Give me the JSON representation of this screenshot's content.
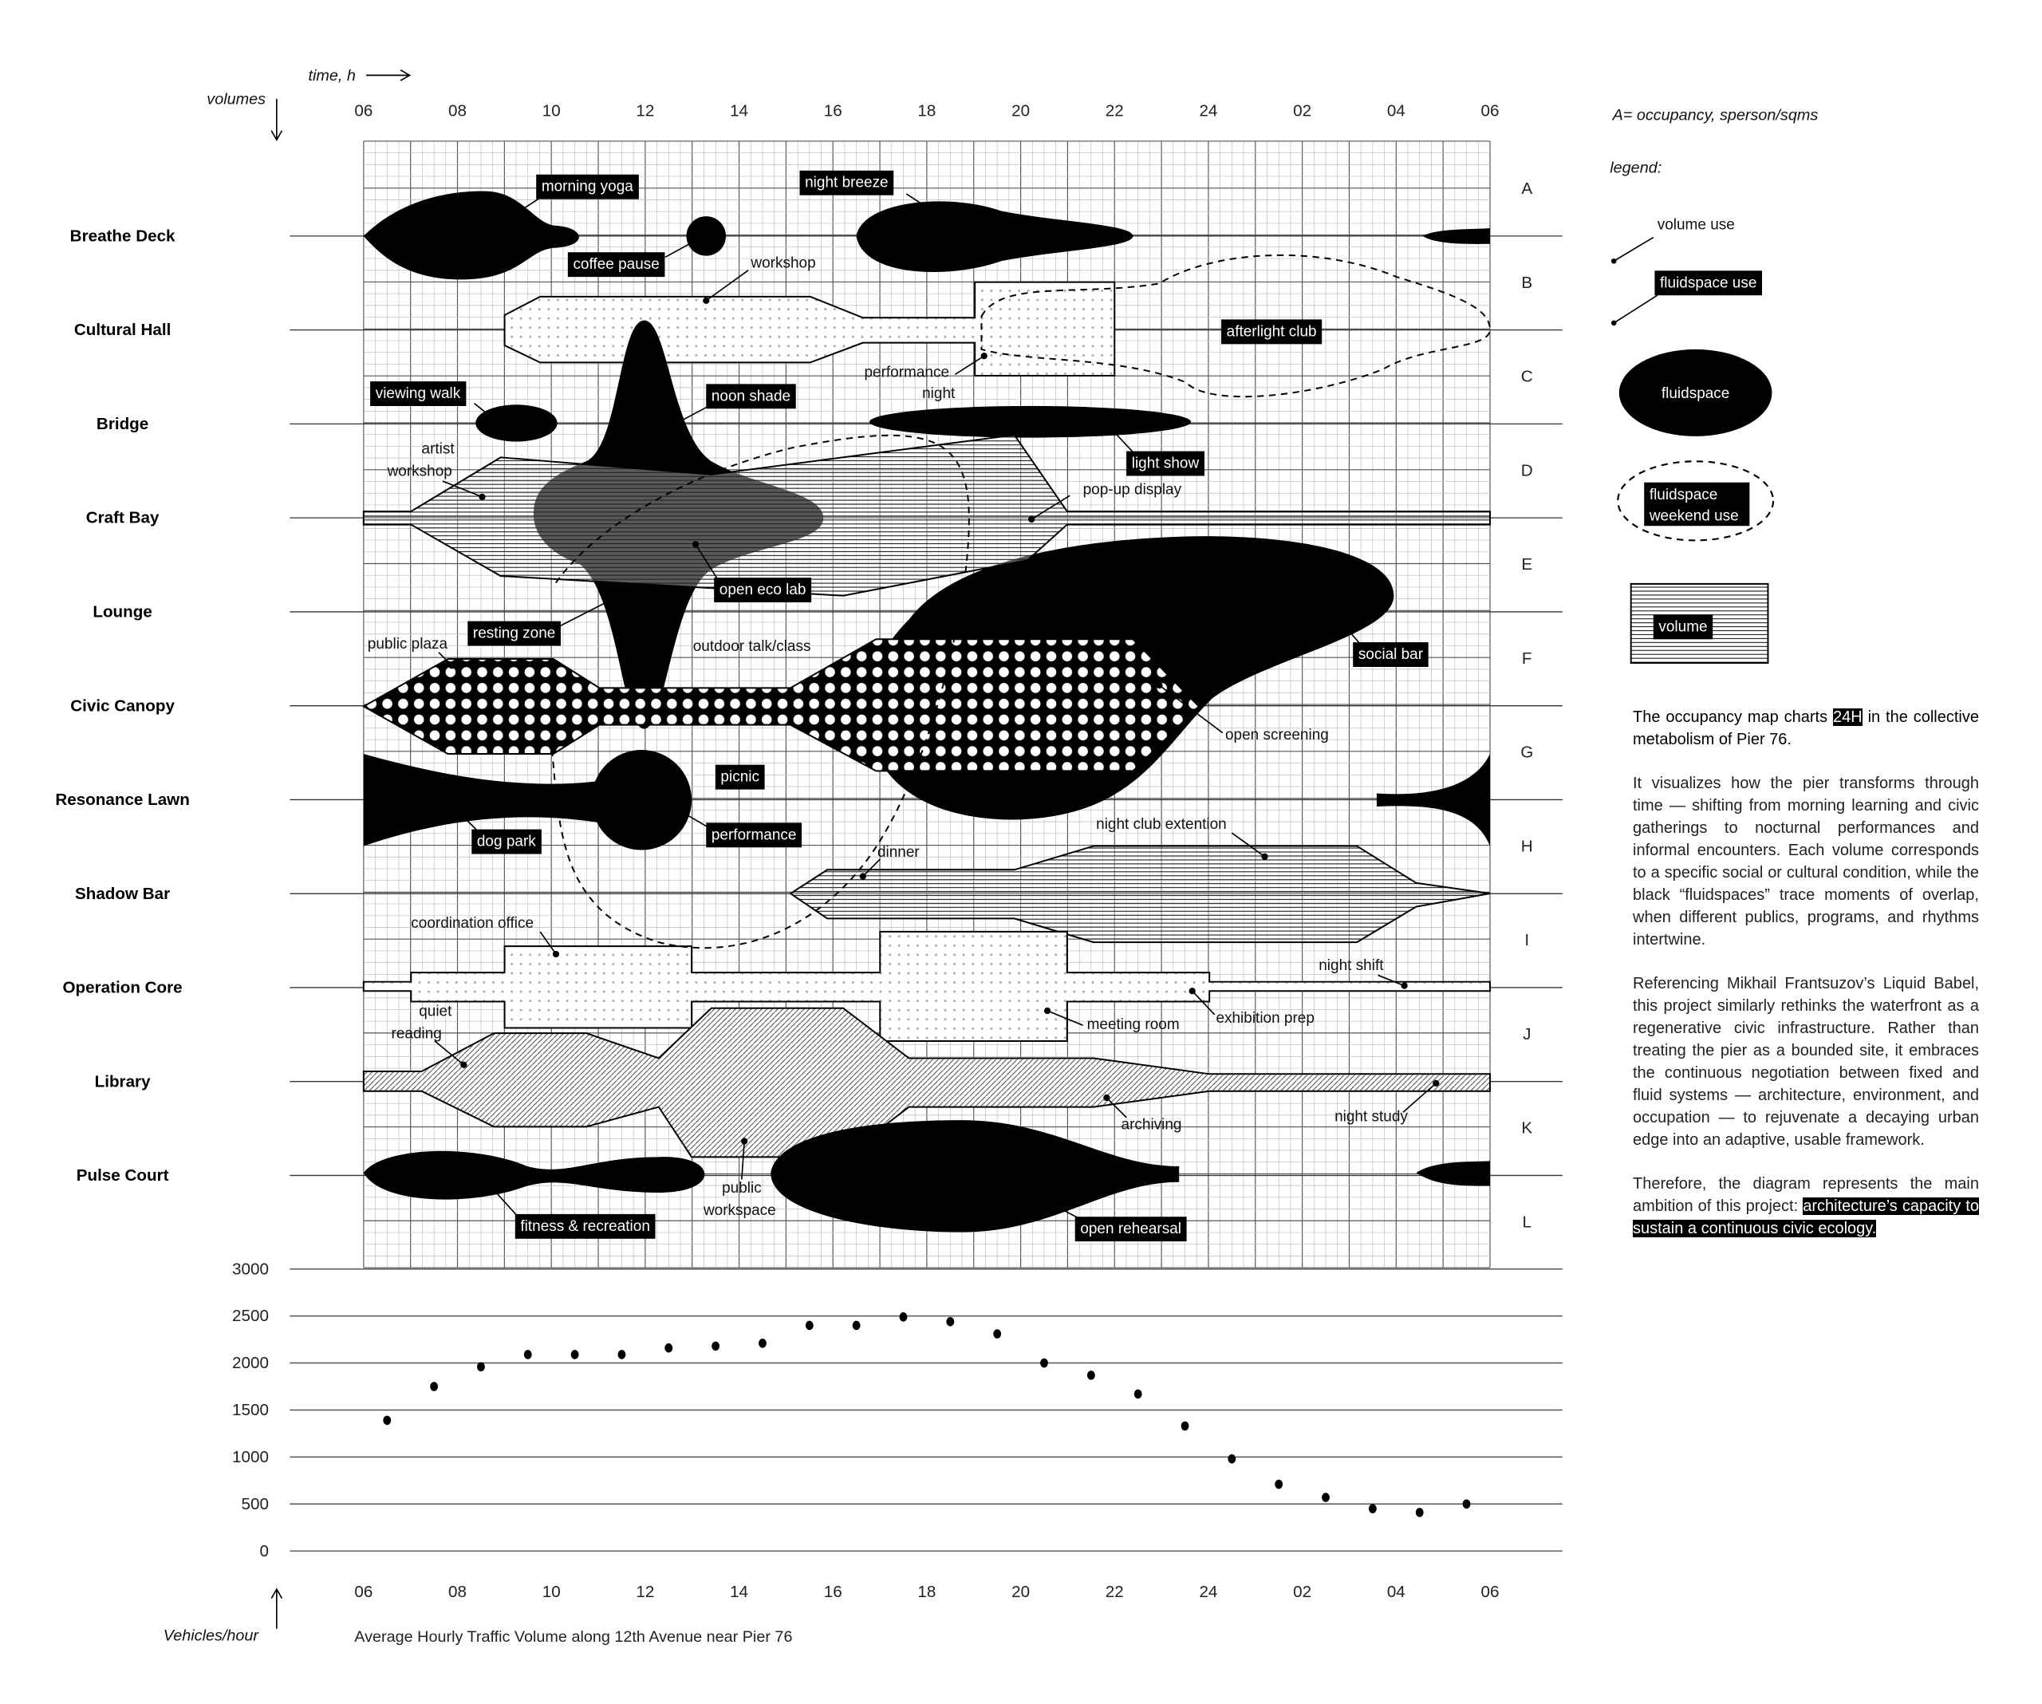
{
  "axes": {
    "time_label": "time, h",
    "volumes_label": "volumes",
    "hours": [
      "06",
      "08",
      "10",
      "12",
      "14",
      "16",
      "18",
      "20",
      "22",
      "24",
      "02",
      "04",
      "06"
    ],
    "row_letters": [
      "A",
      "B",
      "C",
      "D",
      "E",
      "F",
      "G",
      "H",
      "I",
      "J",
      "K",
      "L"
    ]
  },
  "volumes": [
    "Breathe Deck",
    "Cultural Hall",
    "Bridge",
    "Craft Bay",
    "Lounge",
    "Civic Canopy",
    "Resonance Lawn",
    "Shadow Bar",
    "Operation Core",
    "Library",
    "Pulse Court"
  ],
  "labels": {
    "morning_yoga": "morning yoga",
    "coffee_pause": "coffee pause",
    "night_breeze": "night breeze",
    "workshop": "workshop",
    "afterlight_club": "afterlight club",
    "performance_night": [
      "performance",
      "night"
    ],
    "viewing_walk": "viewing walk",
    "noon_shade": "noon shade",
    "light_show": "light show",
    "artist_workshop": [
      "artist",
      "workshop"
    ],
    "popup_display": "pop-up display",
    "open_eco_lab": "open eco lab",
    "resting_zone": "resting zone",
    "public_plaza": "public plaza",
    "outdoor_talk": "outdoor talk/class",
    "social_bar": "social bar",
    "open_screening": "open screening",
    "picnic": "picnic",
    "dog_park": "dog park",
    "performance": "performance",
    "night_club_extention": "night club extention",
    "dinner": "dinner",
    "coordination_office": "coordination office",
    "night_shift": "night shift",
    "quiet_reading": [
      "quiet",
      "reading"
    ],
    "meeting_room": "meeting room",
    "exhibition_prep": "exhibition prep",
    "archiving": "archiving",
    "night_study": "night study",
    "public_workspace": [
      "public",
      "workspace"
    ],
    "fitness_recreation": "fitness & recreation",
    "open_rehearsal": "open rehearsal"
  },
  "legend": {
    "occupancy_note": "A= occupancy, sperson/sqms",
    "title": "legend:",
    "volume_use": "volume use",
    "fluidspace_use": "fluidspace use",
    "fluidspace": "fluidspace",
    "fluidspace_weekend": [
      "fluidspace",
      "weekend use"
    ],
    "volume": "volume"
  },
  "description": {
    "p1_before": "The occupancy map charts ",
    "p1_highlight": "24H",
    "p1_after": " in the collective metabolism of Pier 76.",
    "p2": "It visualizes how the pier transforms through time — shifting from morning learning and civic gatherings to nocturnal performances and informal encounters. Each volume corresponds to a specific social or cultural condition, while the black “fluidspaces” trace moments of overlap, when different publics, programs, and rhythms intertwine.",
    "p3": "Referencing Mikhail Frantsuzov’s Liquid Babel, this project similarly rethinks the waterfront as a regenerative civic infrastructure. Rather than treating the pier as a bounded site, it embraces the continuous negotiation between fixed and fluid systems — architecture, environment, and occupation — to rejuvenate a decaying urban edge into an adaptive, usable framework.",
    "p4": "Therefore, the diagram represents the main ambition of this project:",
    "p4_highlight": "architecture’s capacity to sustain a continuous civic ecology."
  },
  "chart_data": {
    "type": "scatter",
    "title": "Average Hourly Traffic Volume along 12th Avenue near Pier 76",
    "ylabel": "Vehicles/hour",
    "xlabel": "",
    "x_tick_labels": [
      "06",
      "08",
      "10",
      "12",
      "14",
      "16",
      "18",
      "20",
      "22",
      "24",
      "02",
      "04",
      "06"
    ],
    "y_ticks": [
      3000,
      2500,
      2000,
      1500,
      1000,
      500,
      0
    ],
    "ylim": [
      0,
      3000
    ],
    "grid": "horizontal",
    "x": [
      "06:30",
      "07:30",
      "08:30",
      "09:30",
      "10:30",
      "11:30",
      "12:30",
      "13:30",
      "14:30",
      "15:30",
      "16:30",
      "17:30",
      "18:30",
      "19:30",
      "20:30",
      "21:30",
      "22:30",
      "23:30",
      "00:30",
      "01:30",
      "02:30",
      "03:30",
      "04:30",
      "05:30"
    ],
    "values": [
      1390,
      1750,
      1960,
      2090,
      2090,
      2090,
      2160,
      2180,
      2210,
      2400,
      2400,
      2490,
      2440,
      2310,
      2000,
      1870,
      1670,
      1330,
      980,
      710,
      570,
      450,
      410,
      500
    ]
  }
}
